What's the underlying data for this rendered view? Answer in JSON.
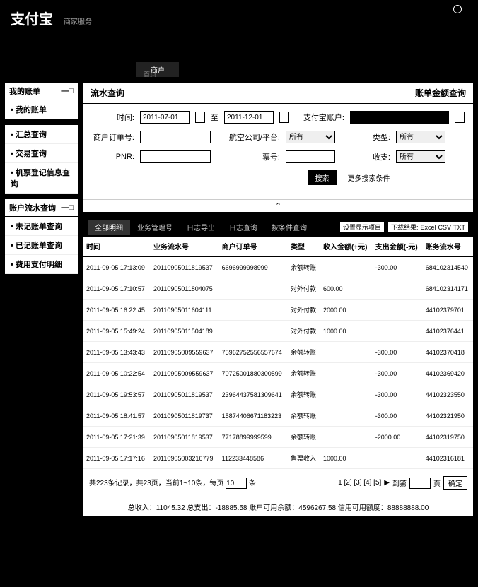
{
  "header": {
    "logo": "支付宝",
    "logo_sub": "商家服务"
  },
  "nav": {
    "tab1": "商户",
    "sub": "首页"
  },
  "sidebar": {
    "section1": {
      "title": "我的账单",
      "items": [
        "我的账单"
      ]
    },
    "section2": {
      "title": "",
      "items": [
        "汇总查询",
        "交易查询",
        "机票登记信息查询"
      ]
    },
    "section3": {
      "title": "账户流水查询",
      "items": [
        "未记账单查询",
        "已记账单查询",
        "费用支付明细"
      ]
    }
  },
  "panel": {
    "title": "流水查询",
    "right_link": "账单金额查询"
  },
  "filter": {
    "labels": {
      "time": "时间:",
      "to": "至",
      "account": "支付宝账户:",
      "order": "商户订单号:",
      "platform": "航空公司/平台:",
      "type": "类型:",
      "pnr": "PNR:",
      "ticket": "票号:",
      "inout": "收支:"
    },
    "values": {
      "date_from": "2011-07-01",
      "date_to": "2011-12-01",
      "account": "",
      "order": "",
      "platform": "所有",
      "type": "所有",
      "pnr": "",
      "ticket": "",
      "inout": "所有"
    },
    "search_btn": "搜索",
    "more": "更多搜索条件"
  },
  "tabs": {
    "t1": "全部明细",
    "t2": "业务管理号",
    "t3": "日志导出",
    "t4": "日志查询",
    "t5": "按条件查询",
    "config_btn": "设置显示项目",
    "dl_label": "下载结果:",
    "excel": "Excel",
    "csv": "CSV",
    "txt": "TXT"
  },
  "table": {
    "headers": [
      "时间",
      "业务流水号",
      "商户订单号",
      "类型",
      "收入金额(+元)",
      "支出金额(-元)",
      "账务流水号"
    ],
    "rows": [
      [
        "2011-09-05 17:13:09",
        "20110905011819537",
        "6696999998999",
        "余额转账",
        "",
        "-300.00",
        "684102314540"
      ],
      [
        "2011-09-05 17:10:57",
        "20110905011804075",
        "",
        "对外付款",
        "600.00",
        "",
        "684102314171"
      ],
      [
        "2011-09-05 16:22:45",
        "20110905011604111",
        "",
        "对外付款",
        "2000.00",
        "",
        "44102379701"
      ],
      [
        "2011-09-05 15:49:24",
        "20110905011504189",
        "",
        "对外付款",
        "1000.00",
        "",
        "44102376441"
      ],
      [
        "2011-09-05 13:43:43",
        "20110905009559637",
        "75962752556557674",
        "余额转账",
        "",
        "-300.00",
        "44102370418"
      ],
      [
        "2011-09-05 10:22:54",
        "20110905009559637",
        "70725001880300599",
        "余额转账",
        "",
        "-300.00",
        "44102369420"
      ],
      [
        "2011-09-05 19:53:57",
        "20110905011819537",
        "23964437581309641",
        "余额转账",
        "",
        "-300.00",
        "44102323550"
      ],
      [
        "2011-09-05 18:41:57",
        "20110905011819737",
        "15874406671183223",
        "余额转账",
        "",
        "-300.00",
        "44102321950"
      ],
      [
        "2011-09-05 17:21:39",
        "20110905011819537",
        "77178899999599",
        "余额转账",
        "",
        "-2000.00",
        "44102319750"
      ],
      [
        "2011-09-05 17:17:16",
        "20110905003216779",
        "112233448586",
        "售票收入",
        "1000.00",
        "",
        "44102316181"
      ]
    ]
  },
  "pagination": {
    "total_text": "共223条记录，共23页，当前1~10条，每页",
    "per_page": "10",
    "unit": "条",
    "pages": "1 [2] [3] [4] [5]",
    "next": "下一页",
    "to": "到第",
    "page_unit": "页",
    "go": "确定"
  },
  "summary": {
    "text": "总收入：11045.32    总支出：-18885.58    账户可用余额：4596267.58    信用可用额度：88888888.00"
  }
}
